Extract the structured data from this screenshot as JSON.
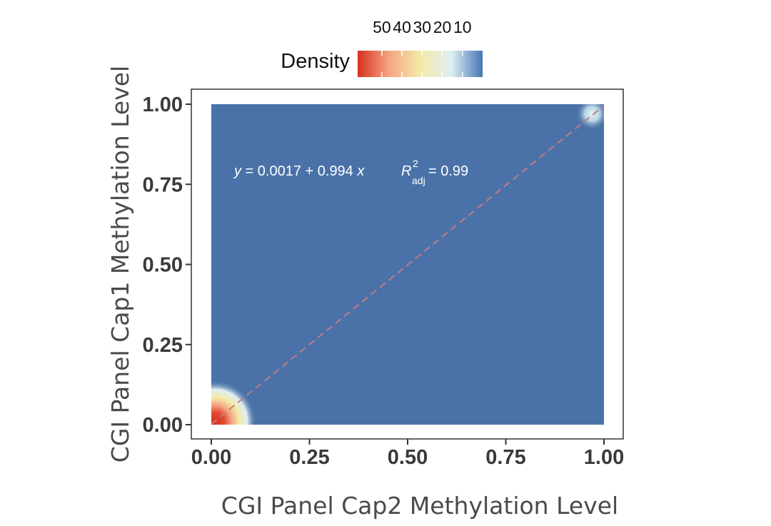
{
  "chart_data": {
    "type": "heatmap",
    "subtype": "2d-density",
    "xlabel": "CGI Panel Cap2 Methylation Level",
    "ylabel": "CGI Panel Cap1 Methylation Level",
    "xlim": [
      0,
      1
    ],
    "ylim": [
      0,
      1
    ],
    "x_ticks": [
      "0.00",
      "0.25",
      "0.50",
      "0.75",
      "1.00"
    ],
    "y_ticks": [
      "0.00",
      "0.25",
      "0.50",
      "0.75",
      "1.00"
    ],
    "x_tick_values": [
      0,
      0.25,
      0.5,
      0.75,
      1.0
    ],
    "y_tick_values": [
      0,
      0.25,
      0.5,
      0.75,
      1.0
    ],
    "legend": {
      "title": "Density",
      "ticks": [
        "50",
        "40",
        "30",
        "20",
        "10"
      ],
      "tick_values": [
        50,
        40,
        30,
        20,
        10
      ],
      "range": [
        0,
        62
      ],
      "colors": [
        "#d7301f",
        "#f4a582",
        "#f5e9a6",
        "#deeef3",
        "#4575b4"
      ],
      "placement": "top"
    },
    "density_hotspots": [
      {
        "x": 0.01,
        "y": 0.01,
        "peak_density": 58
      },
      {
        "x": 0.97,
        "y": 0.97,
        "peak_density": 12
      }
    ],
    "fit_line": {
      "intercept": 0.0017,
      "slope": 0.994,
      "style": "dashed",
      "color": "#c07c84"
    },
    "annotation": {
      "equation_parts": [
        "y",
        " = 0.0017 + 0.994 ",
        "x"
      ],
      "r2_label": "R",
      "r2_superscript": "2",
      "r2_subscript": "adj",
      "r2_value": " = 0.99"
    },
    "background_color": "#4a72a8"
  }
}
